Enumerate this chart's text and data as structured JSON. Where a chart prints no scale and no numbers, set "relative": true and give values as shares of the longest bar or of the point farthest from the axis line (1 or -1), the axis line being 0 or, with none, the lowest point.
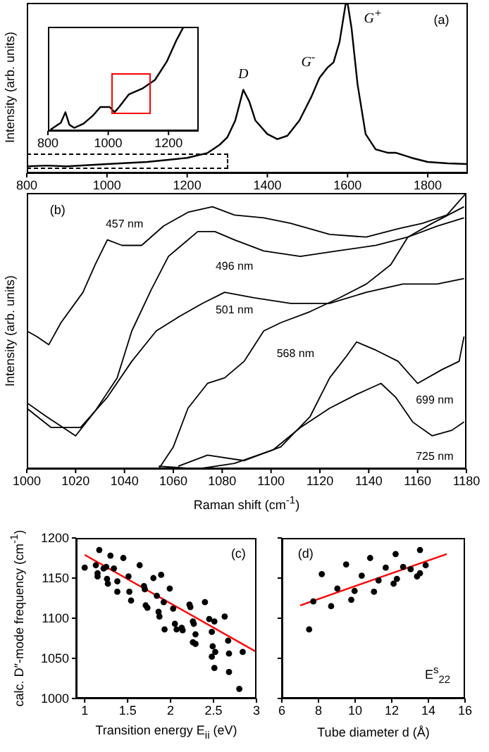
{
  "chart_data": [
    {
      "type": "line",
      "relative": true,
      "ylabel": "Intensity (arb. units)",
      "xlim": [
        800,
        1900
      ],
      "xticks": [
        800,
        1000,
        1200,
        1400,
        1600,
        1800
      ],
      "annotations": [
        {
          "text": "D",
          "x": 1340,
          "y": 0.49
        },
        {
          "text": "G$^{-}$",
          "x": 1530,
          "y": 0.56
        },
        {
          "text": "G$^{+}$",
          "x": 1600,
          "y": 1
        },
        "(a)"
      ],
      "series": [
        {
          "color": "#000000",
          "x": [
            800,
            850,
            900,
            1000,
            1100,
            1200,
            1250,
            1280,
            1300,
            1320,
            1340,
            1355,
            1370,
            1400,
            1425,
            1450,
            1480,
            1510,
            1530,
            1550,
            1565,
            1580,
            1595,
            1600,
            1610,
            1625,
            1645,
            1670,
            1700,
            1720,
            1760,
            1800,
            1850,
            1900
          ],
          "values": [
            0.04,
            0.045,
            0.04,
            0.054,
            0.066,
            0.09,
            0.118,
            0.165,
            0.21,
            0.31,
            0.49,
            0.42,
            0.31,
            0.23,
            0.2,
            0.22,
            0.31,
            0.45,
            0.56,
            0.62,
            0.65,
            0.77,
            0.99,
            1,
            0.85,
            0.52,
            0.23,
            0.14,
            0.12,
            0.12,
            0.09,
            0.066,
            0.058,
            0.054
          ]
        }
      ]
    },
    {
      "type": "line",
      "relative": true,
      "xlim": [
        800,
        1300
      ],
      "xticks": [
        800,
        1000,
        1200
      ],
      "series": [
        {
          "color": "#000000",
          "x": [
            809,
            843,
            858,
            871,
            887,
            918,
            950,
            974,
            1005,
            1021,
            1036,
            1068,
            1115,
            1155,
            1195,
            1226,
            1250
          ],
          "values": [
            0.014,
            0.08,
            0.18,
            0.06,
            0.03,
            0.07,
            0.15,
            0.23,
            0.23,
            0.18,
            0.23,
            0.35,
            0.41,
            0.49,
            0.67,
            0.87,
            1
          ]
        }
      ]
    },
    {
      "type": "line",
      "relative": true,
      "ylabel": "Intensity (arb. units)",
      "xlabel": "Raman shift (cm$^{-1}$)",
      "xlim": [
        1000,
        1180
      ],
      "xticks": [
        1000,
        1020,
        1040,
        1060,
        1080,
        1100,
        1120,
        1140,
        1160,
        1180
      ],
      "annotations": [
        "(b)"
      ],
      "series": [
        {
          "name": "457 nm",
          "color": "#000000",
          "x": [
            1000,
            1004,
            1009,
            1014,
            1023,
            1028,
            1033,
            1039,
            1047,
            1056,
            1066,
            1076,
            1085,
            1097,
            1108,
            1124,
            1139,
            1152,
            1162,
            1172,
            1180
          ],
          "values": [
            0.5,
            0.48,
            0.45,
            0.53,
            0.64,
            0.74,
            0.83,
            0.81,
            0.81,
            0.88,
            0.93,
            0.95,
            0.92,
            0.91,
            0.89,
            0.85,
            0.84,
            0.87,
            0.89,
            0.92,
            1
          ]
        },
        {
          "name": "496 nm",
          "color": "#000000",
          "x": [
            1000,
            1008,
            1020,
            1028,
            1037,
            1043,
            1051,
            1058,
            1070,
            1077,
            1085,
            1097,
            1112,
            1127,
            1143,
            1156,
            1168,
            1179
          ],
          "values": [
            0.24,
            0.19,
            0.12,
            0.21,
            0.33,
            0.5,
            0.65,
            0.77,
            0.86,
            0.86,
            0.83,
            0.79,
            0.77,
            0.79,
            0.81,
            0.84,
            0.88,
            0.91
          ]
        },
        {
          "name": "501 nm",
          "color": "#000000",
          "x": [
            1000,
            1010,
            1022,
            1033,
            1043,
            1053,
            1062,
            1072,
            1081,
            1093,
            1108,
            1124,
            1139,
            1154,
            1168,
            1179
          ],
          "values": [
            0.22,
            0.15,
            0.15,
            0.26,
            0.39,
            0.5,
            0.55,
            0.6,
            0.64,
            0.62,
            0.6,
            0.6,
            0.64,
            0.67,
            0.67,
            0.69
          ]
        },
        {
          "name": "568 nm",
          "color": "#000000",
          "x": [
            1054,
            1060,
            1066,
            1074,
            1081,
            1089,
            1097,
            1104,
            1116,
            1128,
            1139,
            1149,
            1156,
            1166,
            1179
          ],
          "values": [
            0,
            0.08,
            0.22,
            0.31,
            0.33,
            0.39,
            0.5,
            0.53,
            0.57,
            0.62,
            0.67,
            0.74,
            0.84,
            0.89,
            0.95
          ]
        },
        {
          "name": "699 nm",
          "color": "#000000",
          "x": [
            1062,
            1074,
            1089,
            1104,
            1116,
            1124,
            1131,
            1135,
            1143,
            1152,
            1160,
            1170,
            1177,
            1179
          ],
          "values": [
            0.01,
            0.05,
            0.03,
            0.08,
            0.19,
            0.33,
            0.41,
            0.46,
            0.43,
            0.39,
            0.31,
            0.36,
            0.39,
            0.48
          ]
        },
        {
          "name": "725 nm",
          "color": "#000000",
          "x": [
            1054,
            1070,
            1085,
            1101,
            1112,
            1124,
            1135,
            1145,
            1151,
            1158,
            1166,
            1174,
            1179
          ],
          "values": [
            0.01,
            0,
            0.02,
            0.07,
            0.15,
            0.22,
            0.27,
            0.31,
            0.26,
            0.17,
            0.12,
            0.14,
            0.17
          ]
        }
      ]
    },
    {
      "type": "scatter",
      "ylabel": "calc. D″-mode frequency (cm$^{-1}$)",
      "xlabel": "Transition energy E$_{ii}$ (eV)",
      "xlim": [
        0.9,
        3
      ],
      "xticks": [
        1,
        1.5,
        2,
        2.5,
        3
      ],
      "ylim": [
        1000,
        1200
      ],
      "yticks": [
        1000,
        1050,
        1100,
        1150,
        1200
      ],
      "annotations": [
        "(c)"
      ],
      "series": [
        {
          "marker": "circle",
          "color": "#000000",
          "x": [
            1.0,
            1.13,
            1.17,
            1.15,
            1.15,
            1.22,
            1.25,
            1.26,
            1.27,
            1.3,
            1.34,
            1.38,
            1.38,
            1.45,
            1.51,
            1.52,
            1.54,
            1.64,
            1.69,
            1.7,
            1.71,
            1.73,
            1.8,
            1.84,
            1.86,
            1.87,
            1.89,
            1.92,
            1.93,
            1.99,
            2.03,
            2.05,
            2.07,
            2.13,
            2.14,
            2.22,
            2.23,
            2.26,
            2.27,
            2.29,
            2.26,
            2.29,
            2.4,
            2.45,
            2.48,
            2.49,
            2.51,
            2.52,
            2.48,
            2.51,
            2.63,
            2.67,
            2.68,
            2.68,
            2.8,
            2.84
          ],
          "values": [
            1163,
            1166,
            1185,
            1156,
            1152,
            1162,
            1164,
            1149,
            1143,
            1178,
            1162,
            1146,
            1133,
            1175,
            1152,
            1133,
            1122,
            1166,
            1140,
            1136,
            1116,
            1113,
            1150,
            1128,
            1108,
            1102,
            1154,
            1120,
            1086,
            1137,
            1112,
            1093,
            1086,
            1088,
            1085,
            1117,
            1114,
            1096,
            1093,
            1080,
            1070,
            1068,
            1120,
            1099,
            1083,
            1065,
            1096,
            1058,
            1052,
            1038,
            1102,
            1072,
            1056,
            1033,
            1012,
            1058
          ]
        },
        {
          "type": "line",
          "color": "#ff0000",
          "x": [
            1,
            3
          ],
          "values": [
            1179,
            1058
          ]
        }
      ]
    },
    {
      "type": "scatter",
      "tick_labels": "x",
      "xlabel": "Tube diameter d (Å)",
      "xlim": [
        6,
        16
      ],
      "xticks": [
        6,
        8,
        10,
        12,
        14,
        16
      ],
      "ylim": [
        1000,
        1200
      ],
      "yticks": [
        1000,
        1050,
        1100,
        1150,
        1200
      ],
      "annotations": [
        "(d)",
        "E$^{s}$$_{22}$"
      ],
      "series": [
        {
          "marker": "circle",
          "color": "#000000",
          "x": [
            7.49,
            7.72,
            8.18,
            8.69,
            9.03,
            9.51,
            9.79,
            9.97,
            10.36,
            10.82,
            11.03,
            11.28,
            11.67,
            12.1,
            12.21,
            12.28,
            12.62,
            13.03,
            13.38,
            13.54,
            13.54,
            13.85
          ],
          "values": [
            1086,
            1121,
            1155,
            1115,
            1137,
            1167,
            1123,
            1134,
            1153,
            1175,
            1133,
            1147,
            1163,
            1143,
            1180,
            1149,
            1164,
            1161,
            1152,
            1185,
            1156,
            1166
          ]
        },
        {
          "type": "line",
          "color": "#ff0000",
          "x": [
            7,
            15
          ],
          "values": [
            1116,
            1180
          ]
        }
      ]
    }
  ]
}
